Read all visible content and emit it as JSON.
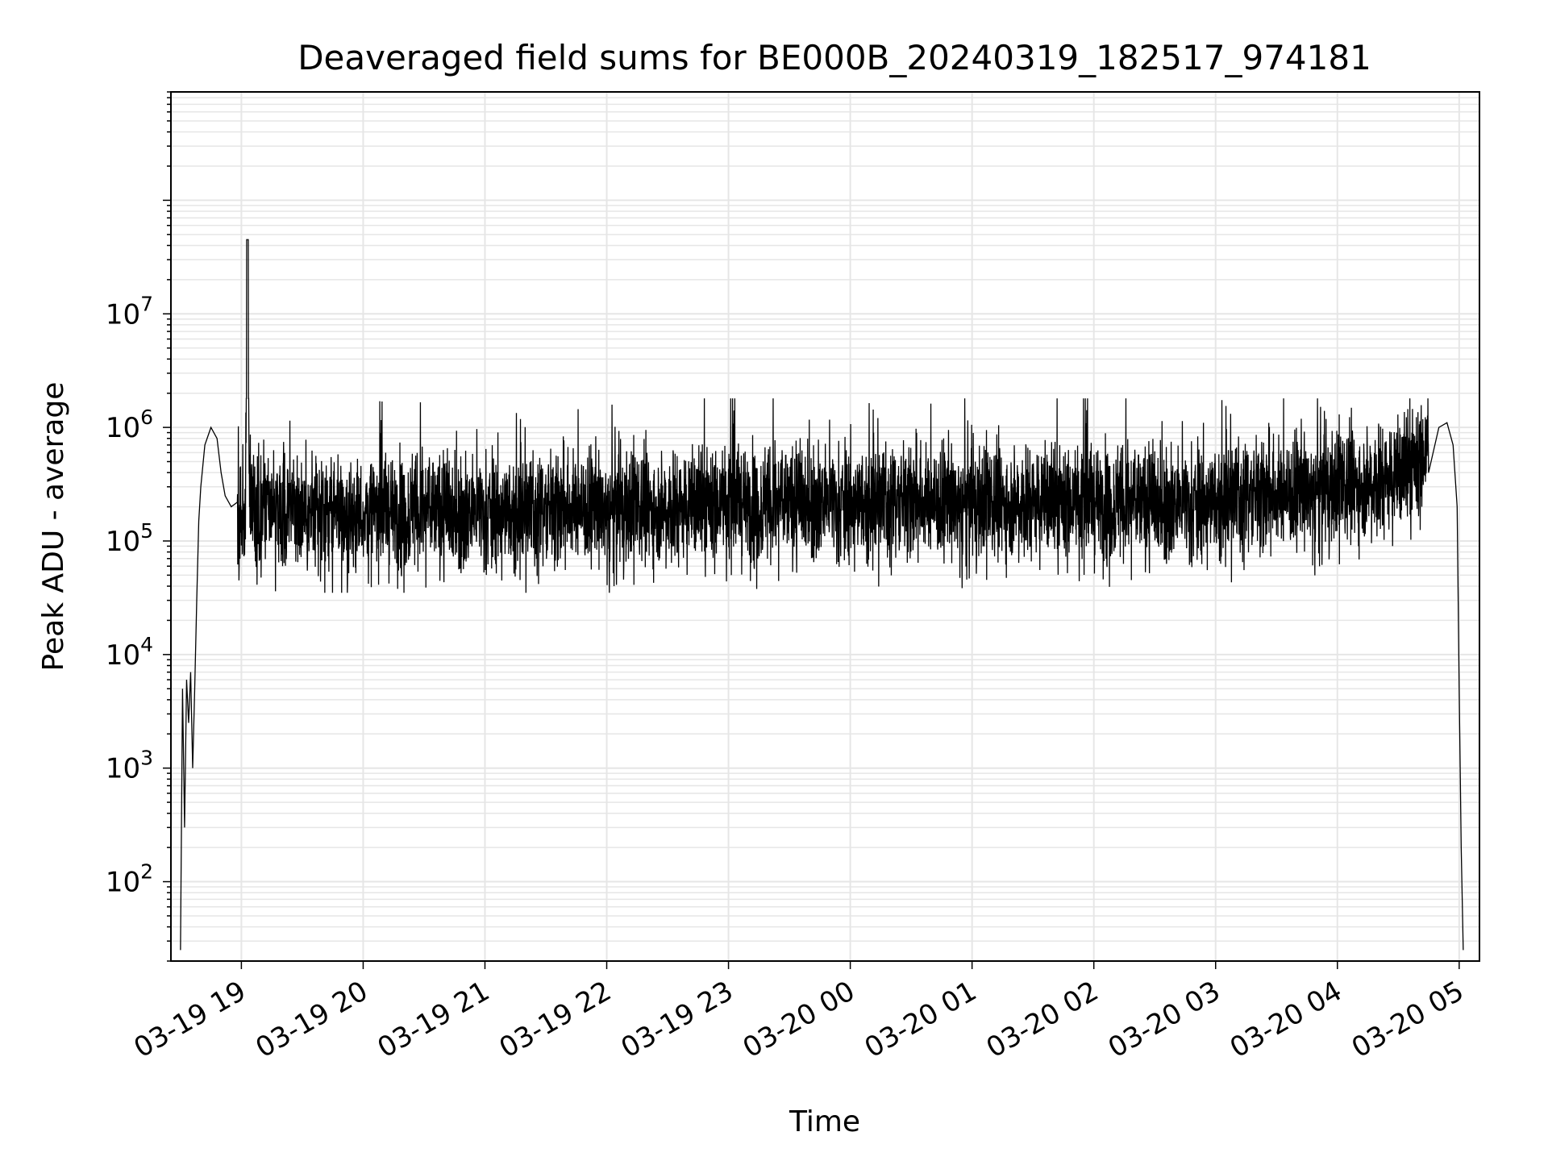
{
  "chart_data": {
    "type": "line",
    "title": "Deaveraged field sums for BE000B_20240319_182517_974181",
    "xlabel": "Time",
    "ylabel": "Peak ADU - average",
    "yscale": "log",
    "ylim": [
      20,
      900000000
    ],
    "xlim": [
      "2024-03-19 18:25:17",
      "2024-03-20 05:10:00"
    ],
    "grid": true,
    "line_color": "#000000",
    "grid_color": "#e6e6e6",
    "x_ticks": [
      {
        "value": "2024-03-19 19:00",
        "label": "03-19 19"
      },
      {
        "value": "2024-03-19 20:00",
        "label": "03-19 20"
      },
      {
        "value": "2024-03-19 21:00",
        "label": "03-19 21"
      },
      {
        "value": "2024-03-19 22:00",
        "label": "03-19 22"
      },
      {
        "value": "2024-03-19 23:00",
        "label": "03-19 23"
      },
      {
        "value": "2024-03-20 00:00",
        "label": "03-20 00"
      },
      {
        "value": "2024-03-20 01:00",
        "label": "03-20 01"
      },
      {
        "value": "2024-03-20 02:00",
        "label": "03-20 02"
      },
      {
        "value": "2024-03-20 03:00",
        "label": "03-20 03"
      },
      {
        "value": "2024-03-20 04:00",
        "label": "03-20 04"
      },
      {
        "value": "2024-03-20 05:00",
        "label": "03-20 05"
      }
    ],
    "y_ticks": [
      {
        "value": 100,
        "base": "10",
        "exp": "2"
      },
      {
        "value": 1000,
        "base": "10",
        "exp": "3"
      },
      {
        "value": 10000,
        "base": "10",
        "exp": "4"
      },
      {
        "value": 100000,
        "base": "10",
        "exp": "5"
      },
      {
        "value": 1000000,
        "base": "10",
        "exp": "6"
      },
      {
        "value": 10000000,
        "base": "10",
        "exp": "7"
      }
    ],
    "series": [
      {
        "x": [
          "2024-03-19 18:30",
          "2024-03-19 18:31",
          "2024-03-19 18:32",
          "2024-03-19 18:33",
          "2024-03-19 18:34",
          "2024-03-19 18:35",
          "2024-03-19 18:36",
          "2024-03-19 18:37",
          "2024-03-19 18:38",
          "2024-03-19 18:39",
          "2024-03-19 18:40",
          "2024-03-19 18:42",
          "2024-03-19 18:45",
          "2024-03-19 18:48",
          "2024-03-19 18:50",
          "2024-03-19 18:52",
          "2024-03-19 18:55",
          "2024-03-19 18:58",
          "2024-03-19 19:00",
          "2024-03-19 19:02",
          "2024-03-19 19:03",
          "2024-03-19 19:04",
          "2024-03-19 19:06",
          "2024-03-19 19:10",
          "2024-03-19 19:15",
          "2024-03-19 19:20",
          "2024-03-19 19:30",
          "2024-03-19 19:45",
          "2024-03-19 20:00",
          "2024-03-19 20:15",
          "2024-03-19 20:30",
          "2024-03-19 20:45",
          "2024-03-19 21:00",
          "2024-03-19 21:15",
          "2024-03-19 21:30",
          "2024-03-19 21:45",
          "2024-03-19 22:00",
          "2024-03-19 22:15",
          "2024-03-19 22:30",
          "2024-03-19 22:45",
          "2024-03-19 23:00",
          "2024-03-19 23:15",
          "2024-03-19 23:30",
          "2024-03-19 23:45",
          "2024-03-20 00:00",
          "2024-03-20 00:15",
          "2024-03-20 00:30",
          "2024-03-20 00:45",
          "2024-03-20 01:00",
          "2024-03-20 01:15",
          "2024-03-20 01:30",
          "2024-03-20 01:45",
          "2024-03-20 02:00",
          "2024-03-20 02:15",
          "2024-03-20 02:30",
          "2024-03-20 02:45",
          "2024-03-20 03:00",
          "2024-03-20 03:15",
          "2024-03-20 03:30",
          "2024-03-20 03:45",
          "2024-03-20 04:00",
          "2024-03-20 04:15",
          "2024-03-20 04:30",
          "2024-03-20 04:40",
          "2024-03-20 04:45",
          "2024-03-20 04:50",
          "2024-03-20 04:54",
          "2024-03-20 04:57",
          "2024-03-20 04:59",
          "2024-03-20 05:00",
          "2024-03-20 05:01",
          "2024-03-20 05:02"
        ],
        "y": [
          25,
          5000,
          300,
          6000,
          2500,
          7000,
          1000,
          5000,
          30000,
          150000,
          300000,
          700000,
          1000000,
          800000,
          400000,
          250000,
          200000,
          180000,
          180000,
          200000,
          45000000,
          250000,
          200000,
          200000,
          180000,
          170000,
          180000,
          170000,
          180000,
          180000,
          190000,
          180000,
          190000,
          180000,
          190000,
          200000,
          190000,
          200000,
          200000,
          210000,
          220000,
          210000,
          220000,
          230000,
          220000,
          220000,
          230000,
          220000,
          220000,
          220000,
          230000,
          220000,
          220000,
          220000,
          220000,
          220000,
          230000,
          250000,
          260000,
          280000,
          300000,
          330000,
          380000,
          500000,
          700000,
          1000000,
          1100000,
          700000,
          200000,
          5000,
          200,
          25
        ]
      }
    ],
    "noise_band": [
      {
        "x_start": "2024-03-19 18:58",
        "x_end": "2024-03-20 04:45",
        "median": 200000,
        "spread_decades": 0.25,
        "spike_low": 35000,
        "spike_high": 1800000
      }
    ]
  }
}
